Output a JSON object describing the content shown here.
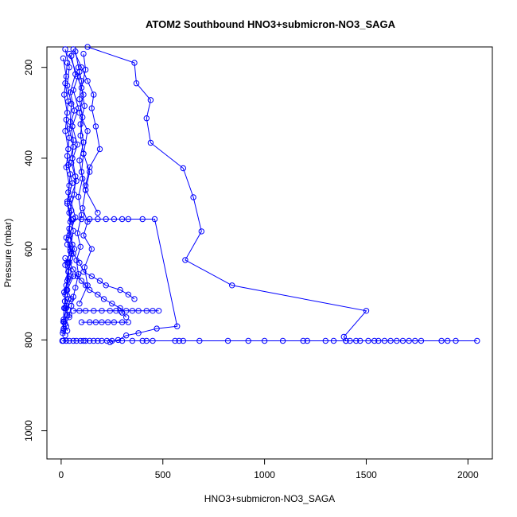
{
  "chart_data": {
    "type": "scatter",
    "title": "ATOM2 Southbound HNO3+submicron-NO3_SAGA",
    "xlabel": "HNO3+submicron-NO3_SAGA",
    "ylabel": "Pressure (mbar)",
    "xlim": [
      -70,
      2120
    ],
    "ylim": [
      1062,
      155
    ],
    "y_reversed": true,
    "x_ticks": [
      0,
      500,
      1000,
      1500,
      2000
    ],
    "y_ticks": [
      200,
      400,
      600,
      800,
      1000
    ],
    "marker": "open-circle",
    "line": "connected",
    "grid": false,
    "legend": "none",
    "color": "#0000ff",
    "series": [
      {
        "x": [
          130,
          360,
          370,
          440,
          420,
          440,
          600,
          650,
          690,
          610,
          840,
          1500,
          1390,
          1400
        ],
        "y": [
          155,
          190,
          235,
          272,
          312,
          366,
          422,
          486,
          561,
          624,
          680,
          736,
          793,
          802
        ]
      },
      {
        "x": [
          5,
          10,
          25,
          40,
          60,
          75,
          95,
          110,
          120,
          140,
          160,
          180,
          200,
          225,
          250,
          300,
          350,
          400,
          420,
          450,
          560,
          580,
          600,
          680,
          820,
          920,
          1000,
          1090,
          1190,
          1210,
          1300,
          1340,
          1400,
          1420,
          1450,
          1470,
          1510,
          1540,
          1560,
          1590,
          1620,
          1650,
          1680,
          1710,
          1740,
          1770,
          1870,
          1900,
          1940,
          2045
        ],
        "y": [
          802,
          802,
          802,
          802,
          802,
          802,
          802,
          802,
          802,
          802,
          802,
          802,
          802,
          802,
          802,
          802,
          802,
          802,
          802,
          802,
          802,
          802,
          802,
          802,
          802,
          802,
          802,
          802,
          802,
          802,
          802,
          802,
          802,
          802,
          802,
          802,
          802,
          802,
          802,
          802,
          802,
          802,
          802,
          802,
          802,
          802,
          802,
          802,
          802,
          802
        ]
      },
      {
        "x": [
          60,
          90,
          120,
          160,
          200,
          240,
          270,
          290,
          320,
          350,
          380,
          420,
          450,
          480
        ],
        "y": [
          736,
          736,
          736,
          736,
          736,
          736,
          736,
          736,
          736,
          736,
          736,
          736,
          736,
          736
        ]
      },
      {
        "x": [
          100,
          140,
          170,
          200,
          230,
          260,
          300,
          330
        ],
        "y": [
          761,
          761,
          761,
          761,
          761,
          761,
          761,
          761
        ]
      },
      {
        "x": [
          60,
          100,
          140,
          180,
          220,
          260,
          300,
          330,
          400,
          460,
          570,
          470,
          380,
          320,
          280,
          240
        ],
        "y": [
          534,
          534,
          534,
          534,
          534,
          534,
          534,
          534,
          534,
          534,
          770,
          775,
          785,
          790,
          800,
          805
        ]
      },
      {
        "x": [
          30,
          60,
          90,
          110,
          150,
          190,
          220,
          290,
          330,
          360
        ],
        "y": [
          590,
          610,
          630,
          650,
          660,
          670,
          680,
          690,
          700,
          710
        ]
      },
      {
        "x": [
          20,
          40,
          60,
          80,
          100,
          120,
          140,
          180,
          210,
          250,
          290,
          300,
          320
        ],
        "y": [
          620,
          630,
          645,
          660,
          670,
          680,
          690,
          700,
          710,
          720,
          730,
          740,
          750
        ]
      },
      {
        "x": [
          60,
          100,
          130,
          160,
          150,
          170,
          190,
          140,
          120
        ],
        "y": [
          160,
          200,
          230,
          260,
          290,
          330,
          380,
          420,
          460
        ]
      },
      {
        "x": [
          40,
          80,
          110,
          90,
          130,
          110,
          140,
          120,
          180
        ],
        "y": [
          170,
          220,
          260,
          300,
          340,
          390,
          430,
          470,
          520
        ]
      },
      {
        "x": [
          20,
          40,
          30,
          50,
          45,
          60,
          55,
          70,
          65,
          40,
          60,
          45,
          30,
          40,
          25,
          35,
          20,
          30,
          15,
          25,
          10,
          20
        ],
        "y": [
          160,
          200,
          240,
          280,
          320,
          360,
          400,
          440,
          480,
          520,
          560,
          600,
          630,
          660,
          690,
          710,
          730,
          745,
          760,
          770,
          780,
          790
        ]
      },
      {
        "x": [
          70,
          90,
          60,
          85,
          55,
          80,
          50,
          75,
          45,
          70,
          40,
          65,
          35,
          60,
          30,
          50,
          25,
          40,
          20,
          30
        ],
        "y": [
          165,
          210,
          250,
          290,
          330,
          370,
          410,
          450,
          490,
          530,
          570,
          600,
          630,
          660,
          690,
          710,
          730,
          750,
          765,
          780
        ]
      },
      {
        "x": [
          10,
          25,
          15,
          30,
          20,
          35,
          25,
          40,
          30,
          45,
          35,
          50,
          40,
          30,
          20,
          15,
          10,
          8
        ],
        "y": [
          180,
          220,
          260,
          300,
          340,
          380,
          420,
          460,
          500,
          540,
          580,
          610,
          640,
          670,
          700,
          730,
          760,
          785
        ]
      },
      {
        "x": [
          110,
          120,
          100,
          115,
          95,
          110,
          90,
          105,
          85,
          100,
          80,
          95,
          75,
          85,
          70,
          60,
          50,
          40
        ],
        "y": [
          170,
          205,
          245,
          285,
          325,
          365,
          405,
          445,
          485,
          525,
          565,
          595,
          625,
          655,
          685,
          705,
          725,
          745
        ]
      },
      {
        "x": [
          50,
          70,
          45,
          65,
          40,
          60,
          35,
          55,
          30,
          50,
          25,
          45,
          20,
          35,
          15,
          25,
          12
        ],
        "y": [
          175,
          215,
          255,
          295,
          335,
          375,
          415,
          455,
          495,
          535,
          575,
          605,
          635,
          665,
          695,
          725,
          775
        ]
      },
      {
        "x": [
          85,
          100,
          90,
          105,
          95,
          110,
          100,
          120,
          105,
          130,
          110,
          150,
          115,
          130,
          90
        ],
        "y": [
          200,
          230,
          270,
          310,
          350,
          390,
          430,
          470,
          510,
          540,
          570,
          600,
          640,
          680,
          720
        ]
      },
      {
        "x": [
          30,
          20,
          35,
          25,
          40,
          30,
          45,
          35,
          50,
          40,
          55,
          45,
          35,
          25,
          18,
          12
        ],
        "y": [
          190,
          235,
          275,
          315,
          355,
          395,
          435,
          475,
          515,
          555,
          590,
          620,
          650,
          680,
          715,
          755
        ]
      }
    ]
  }
}
